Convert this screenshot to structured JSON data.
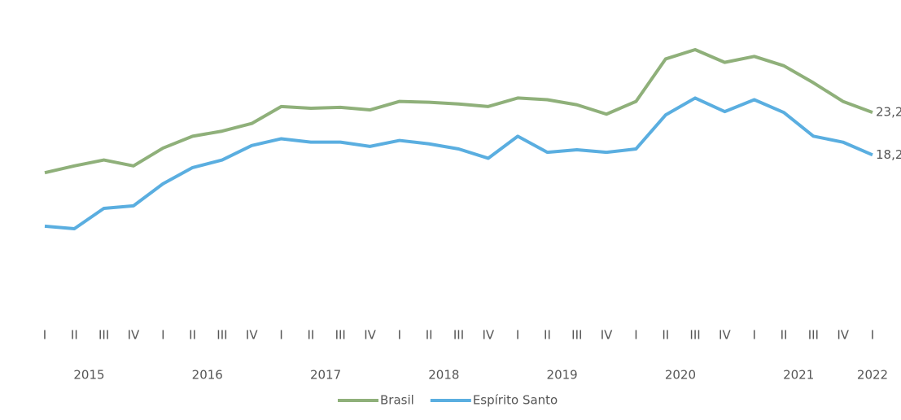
{
  "chart_data": {
    "type": "line",
    "categories": [
      "I",
      "II",
      "III",
      "IV",
      "I",
      "II",
      "III",
      "IV",
      "I",
      "II",
      "III",
      "IV",
      "I",
      "II",
      "III",
      "IV",
      "I",
      "II",
      "III",
      "IV",
      "I",
      "II",
      "III",
      "IV",
      "I",
      "II",
      "III",
      "IV",
      "I"
    ],
    "years": [
      "2015",
      "2016",
      "2017",
      "2018",
      "2019",
      "2020",
      "2021",
      "2022"
    ],
    "series": [
      {
        "name": "Brasil",
        "color": "#8fb07a",
        "values": [
          16.1,
          16.9,
          17.6,
          16.9,
          19.0,
          20.4,
          21.0,
          21.9,
          23.9,
          23.7,
          23.8,
          23.5,
          24.5,
          24.4,
          24.2,
          23.9,
          24.9,
          24.7,
          24.1,
          23.0,
          24.5,
          29.5,
          30.6,
          29.1,
          29.8,
          28.7,
          26.7,
          24.5,
          23.2
        ],
        "value_labels": [
          null,
          null,
          null,
          null,
          null,
          null,
          null,
          null,
          null,
          null,
          null,
          null,
          null,
          null,
          null,
          null,
          null,
          null,
          null,
          null,
          null,
          null,
          null,
          null,
          null,
          null,
          null,
          null,
          "23,2"
        ]
      },
      {
        "name": "Espírito Santo",
        "color": "#5aaee0",
        "values": [
          9.8,
          9.5,
          11.9,
          12.2,
          14.8,
          16.7,
          17.6,
          19.3,
          20.1,
          19.7,
          19.7,
          19.2,
          19.9,
          19.5,
          18.9,
          17.8,
          20.4,
          18.5,
          18.8,
          18.5,
          18.9,
          22.9,
          24.9,
          23.3,
          24.7,
          23.2,
          20.4,
          19.7,
          18.2
        ],
        "value_labels": [
          null,
          null,
          null,
          null,
          null,
          null,
          null,
          null,
          null,
          null,
          null,
          null,
          null,
          null,
          null,
          null,
          null,
          null,
          null,
          null,
          null,
          null,
          null,
          null,
          null,
          null,
          null,
          null,
          "18,2"
        ]
      }
    ],
    "legend": "bottom"
  }
}
